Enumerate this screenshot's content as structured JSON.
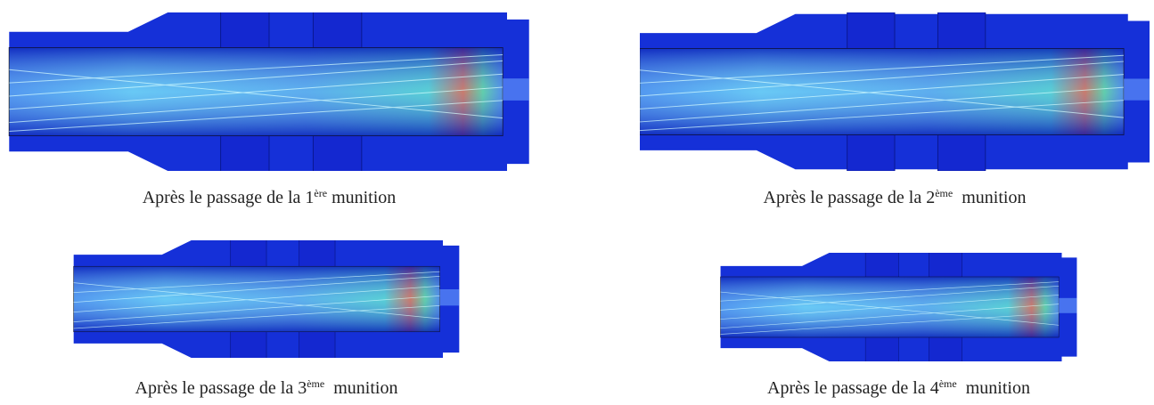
{
  "figures": [
    {
      "caption": {
        "prefix": "Après le passage de la ",
        "number": "1",
        "ordinal": "ère",
        "suffix": " munition"
      }
    },
    {
      "caption": {
        "prefix": "Après le passage de la ",
        "number": "2",
        "ordinal": "ème",
        "suffix": "  munition"
      }
    },
    {
      "caption": {
        "prefix": "Après le passage de la ",
        "number": "3",
        "ordinal": "ème",
        "suffix": "  munition"
      }
    },
    {
      "caption": {
        "prefix": "Après le passage de la ",
        "number": "4",
        "ordinal": "ème",
        "suffix": "  munition"
      }
    }
  ]
}
